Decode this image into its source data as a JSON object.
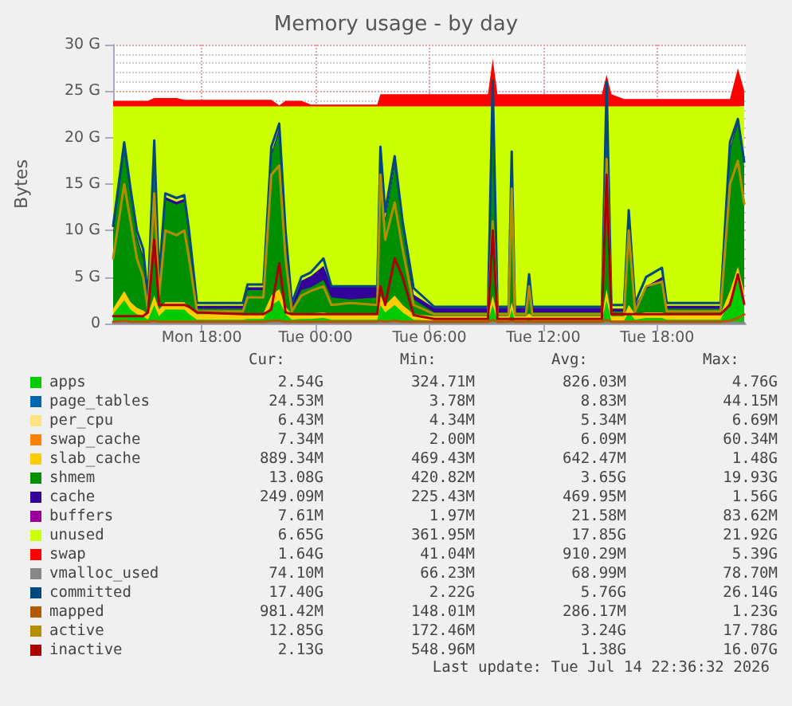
{
  "chart_data": {
    "type": "area",
    "title": "Memory usage - by day",
    "ylabel": "Bytes",
    "stacked": true,
    "grid": true,
    "legend": "bottom",
    "marker": "none",
    "xlim": [
      "2026-07-13T13:20",
      "2026-07-14T22:40"
    ],
    "xticks": [
      {
        "value": "2026-07-13T18:00",
        "label": "Mon 18:00"
      },
      {
        "value": "2026-07-14T00:00",
        "label": "Tue 00:00"
      },
      {
        "value": "2026-07-14T06:00",
        "label": "Tue 06:00"
      },
      {
        "value": "2026-07-14T12:00",
        "label": "Tue 12:00"
      },
      {
        "value": "2026-07-14T18:00",
        "label": "Tue 18:00"
      }
    ],
    "ylim": [
      0,
      30
    ],
    "yticks": [
      0,
      {
        "value": 5,
        "label": "5 G"
      },
      {
        "value": 10,
        "label": "10 G"
      },
      {
        "value": 15,
        "label": "15 G"
      },
      {
        "value": 20,
        "label": "20 G"
      },
      {
        "value": 25,
        "label": "25 G"
      },
      {
        "value": 30,
        "label": "30 G"
      }
    ],
    "x": [
      "2026-07-13T13:20",
      "2026-07-13T13:55",
      "2026-07-13T14:15",
      "2026-07-13T14:35",
      "2026-07-13T14:55",
      "2026-07-13T15:10",
      "2026-07-13T15:30",
      "2026-07-13T15:45",
      "2026-07-13T16:05",
      "2026-07-13T16:40",
      "2026-07-13T17:05",
      "2026-07-13T17:20",
      "2026-07-13T17:45",
      "2026-07-13T20:10",
      "2026-07-13T20:25",
      "2026-07-13T21:15",
      "2026-07-13T21:40",
      "2026-07-13T22:05",
      "2026-07-13T22:25",
      "2026-07-13T22:45",
      "2026-07-13T23:15",
      "2026-07-13T23:45",
      "2026-07-14T00:25",
      "2026-07-14T00:50",
      "2026-07-14T01:50",
      "2026-07-14T03:15",
      "2026-07-14T03:25",
      "2026-07-14T03:40",
      "2026-07-14T04:10",
      "2026-07-14T04:35",
      "2026-07-14T05:10",
      "2026-07-14T06:15",
      "2026-07-14T09:05",
      "2026-07-14T09:20",
      "2026-07-14T09:35",
      "2026-07-14T10:10",
      "2026-07-14T10:20",
      "2026-07-14T10:30",
      "2026-07-14T11:05",
      "2026-07-14T11:15",
      "2026-07-14T11:25",
      "2026-07-14T15:05",
      "2026-07-14T15:20",
      "2026-07-14T15:35",
      "2026-07-14T16:15",
      "2026-07-14T16:30",
      "2026-07-14T16:50",
      "2026-07-14T17:25",
      "2026-07-14T18:15",
      "2026-07-14T18:30",
      "2026-07-14T21:20",
      "2026-07-14T21:50",
      "2026-07-14T22:15",
      "2026-07-14T22:35"
    ],
    "series": [
      {
        "name": "apps",
        "color": "#00cc00",
        "values": [
          1.0,
          2.5,
          1.5,
          1.0,
          0.8,
          0.4,
          2.0,
          0.8,
          1.5,
          1.5,
          1.5,
          1.0,
          0.4,
          0.4,
          0.5,
          0.5,
          2.0,
          2.5,
          1.0,
          0.4,
          0.5,
          0.5,
          0.6,
          0.4,
          0.4,
          0.4,
          2.0,
          1.2,
          2.0,
          1.2,
          0.4,
          0.3,
          0.3,
          2.0,
          0.3,
          0.3,
          1.5,
          0.3,
          0.3,
          0.5,
          0.3,
          0.3,
          2.5,
          0.3,
          0.3,
          1.2,
          0.4,
          0.6,
          0.6,
          0.4,
          0.4,
          2.5,
          4.7,
          2.54
        ]
      },
      {
        "name": "page_tables",
        "color": "#0066b3",
        "values": [
          null,
          null,
          null,
          null,
          null,
          null,
          null,
          null,
          null,
          null,
          null,
          null,
          null,
          null,
          null,
          null,
          null,
          null,
          null,
          null,
          null,
          null,
          null,
          null,
          null,
          null,
          null,
          null,
          null,
          null,
          null,
          null,
          null,
          null,
          null,
          null,
          null,
          null,
          null,
          null,
          null,
          null,
          null,
          null,
          null,
          null,
          null,
          null,
          null,
          null,
          null,
          null,
          null,
          null
        ]
      },
      {
        "name": "per_cpu",
        "color": "#ffe380",
        "values": [
          null,
          null,
          null,
          null,
          null,
          null,
          null,
          null,
          null,
          null,
          null,
          null,
          null,
          null,
          null,
          null,
          null,
          null,
          null,
          null,
          null,
          null,
          null,
          null,
          null,
          null,
          null,
          null,
          null,
          null,
          null,
          null,
          null,
          null,
          null,
          null,
          null,
          null,
          null,
          null,
          null,
          null,
          null,
          null,
          null,
          null,
          null,
          null,
          null,
          null,
          null,
          null,
          null,
          null
        ]
      },
      {
        "name": "swap_cache",
        "color": "#ff8000",
        "values": [
          null,
          null,
          null,
          null,
          null,
          null,
          null,
          null,
          null,
          null,
          null,
          null,
          null,
          null,
          null,
          null,
          null,
          null,
          null,
          null,
          null,
          null,
          null,
          null,
          null,
          null,
          null,
          null,
          null,
          null,
          null,
          null,
          null,
          null,
          null,
          null,
          null,
          null,
          null,
          null,
          null,
          null,
          null,
          null,
          null,
          null,
          null,
          null,
          null,
          null,
          null,
          null,
          null,
          null
        ]
      },
      {
        "name": "slab_cache",
        "color": "#ffcc00",
        "values": [
          0.6,
          1.0,
          0.8,
          0.7,
          0.6,
          0.6,
          1.0,
          0.7,
          0.8,
          0.8,
          0.8,
          0.7,
          0.6,
          0.6,
          0.6,
          0.6,
          1.0,
          1.2,
          0.8,
          0.6,
          0.6,
          0.6,
          0.6,
          0.6,
          0.6,
          0.6,
          1.0,
          0.8,
          1.0,
          0.8,
          0.6,
          0.5,
          0.5,
          1.0,
          0.5,
          0.5,
          0.8,
          0.5,
          0.5,
          0.6,
          0.5,
          0.5,
          1.2,
          0.5,
          0.5,
          0.8,
          0.6,
          0.6,
          0.6,
          0.6,
          0.6,
          1.0,
          1.4,
          0.89
        ]
      },
      {
        "name": "shmem",
        "color": "#008f00",
        "values": [
          8.0,
          15.0,
          11.5,
          7.5,
          5.5,
          0.8,
          15.5,
          2.8,
          11.0,
          10.5,
          10.8,
          7.5,
          0.6,
          0.6,
          2.5,
          2.5,
          15.0,
          17.0,
          7.5,
          0.6,
          2.5,
          2.8,
          3.5,
          1.8,
          1.6,
          1.8,
          15.0,
          9.0,
          14.0,
          8.5,
          1.6,
          0.4,
          0.4,
          19.7,
          0.4,
          0.4,
          14.0,
          0.4,
          0.4,
          3.3,
          0.4,
          0.4,
          19.0,
          0.5,
          0.5,
          9.0,
          0.6,
          2.5,
          3.5,
          0.6,
          0.6,
          15.0,
          15.5,
          13.08
        ]
      },
      {
        "name": "cache",
        "color": "#330099",
        "values": [
          0.3,
          0.3,
          0.3,
          0.3,
          0.3,
          0.3,
          0.3,
          0.3,
          0.3,
          0.3,
          0.3,
          0.3,
          0.3,
          0.3,
          0.3,
          0.3,
          0.3,
          0.3,
          0.3,
          0.3,
          1.0,
          1.2,
          1.5,
          1.2,
          1.4,
          1.2,
          0.3,
          0.3,
          0.3,
          0.3,
          0.5,
          0.5,
          0.5,
          0.3,
          0.5,
          0.5,
          0.3,
          0.5,
          0.5,
          0.3,
          0.5,
          0.5,
          0.3,
          0.3,
          0.3,
          0.3,
          0.3,
          0.3,
          0.3,
          0.3,
          0.3,
          0.3,
          0.3,
          0.25
        ]
      },
      {
        "name": "buffers",
        "color": "#990099",
        "values": [
          null,
          null,
          null,
          null,
          null,
          null,
          null,
          null,
          null,
          null,
          null,
          null,
          null,
          null,
          null,
          null,
          null,
          null,
          null,
          null,
          null,
          null,
          null,
          null,
          null,
          null,
          null,
          null,
          null,
          null,
          null,
          null,
          null,
          null,
          null,
          null,
          null,
          null,
          null,
          null,
          null,
          null,
          null,
          null,
          null,
          null,
          null,
          null,
          null,
          null,
          null,
          null,
          null,
          null
        ]
      },
      {
        "name": "unused",
        "color": "#ccff00",
        "values": [
          13.46,
          4.56,
          9.26,
          13.86,
          16.16,
          21.26,
          4.56,
          18.76,
          9.76,
          10.26,
          9.96,
          13.86,
          21.46,
          21.46,
          19.46,
          19.46,
          5.06,
          2.36,
          13.76,
          21.46,
          18.76,
          18.26,
          17.16,
          19.36,
          19.36,
          19.36,
          5.06,
          12.06,
          6.06,
          12.56,
          20.26,
          21.66,
          21.66,
          0.36,
          21.66,
          21.66,
          6.76,
          21.66,
          21.66,
          18.66,
          21.66,
          21.66,
          0.36,
          21.76,
          21.76,
          12.06,
          21.46,
          19.36,
          18.36,
          21.46,
          21.46,
          4.56,
          1.46,
          6.65
        ]
      },
      {
        "name": "swap",
        "color": "#ff0000",
        "values": [
          0.6,
          0.6,
          0.6,
          0.6,
          0.6,
          0.6,
          0.9,
          0.9,
          0.9,
          0.9,
          0.7,
          0.7,
          0.7,
          0.7,
          0.7,
          0.7,
          0.7,
          0.1,
          0.6,
          0.6,
          0.6,
          0.2,
          0.2,
          0.2,
          0.2,
          0.2,
          1.3,
          1.3,
          1.3,
          1.3,
          1.3,
          1.3,
          1.3,
          5.1,
          1.3,
          1.3,
          1.3,
          1.3,
          1.3,
          1.3,
          1.3,
          1.3,
          3.4,
          1.3,
          0.8,
          0.8,
          0.8,
          0.8,
          0.8,
          0.8,
          0.8,
          0.8,
          4.1,
          1.64
        ]
      },
      {
        "name": "vmalloc_used",
        "color": "#888888",
        "type": "line",
        "values": [
          0.07,
          0.07,
          0.07,
          0.07,
          0.07,
          0.07,
          0.07,
          0.07,
          0.07,
          0.07,
          0.07,
          0.07,
          0.07,
          0.07,
          0.07,
          0.07,
          0.07,
          0.07,
          0.07,
          0.07,
          0.07,
          0.07,
          0.07,
          0.07,
          0.07,
          0.07,
          0.07,
          0.07,
          0.07,
          0.07,
          0.07,
          0.07,
          0.07,
          0.07,
          0.07,
          0.07,
          0.07,
          0.07,
          0.07,
          0.07,
          0.07,
          0.07,
          0.07,
          0.07,
          0.07,
          0.07,
          0.07,
          0.07,
          0.07,
          0.07,
          0.07,
          0.07,
          0.07,
          0.07
        ]
      },
      {
        "name": "committed",
        "color": "#00487d",
        "type": "line",
        "values": [
          10.5,
          19.5,
          14.5,
          10,
          8,
          2.7,
          19.7,
          5,
          14,
          13.5,
          13.8,
          10,
          2.2,
          2.2,
          4.2,
          4.2,
          19,
          21.5,
          10,
          2.2,
          5,
          5.5,
          7,
          4,
          4,
          4,
          19,
          12,
          18,
          11,
          3.8,
          1.8,
          1.8,
          26.1,
          1.8,
          1.8,
          18.5,
          1.8,
          1.8,
          5.3,
          1.8,
          1.8,
          26,
          2,
          2,
          12.2,
          2.2,
          5,
          6,
          2.2,
          2.2,
          19.5,
          22,
          17.4
        ]
      },
      {
        "name": "mapped",
        "color": "#b35a00",
        "type": "line",
        "values": [
          0.2,
          0.3,
          0.2,
          0.2,
          0.2,
          0.2,
          0.3,
          0.2,
          0.2,
          0.2,
          0.2,
          0.2,
          0.2,
          0.2,
          0.2,
          0.2,
          0.3,
          0.3,
          0.2,
          0.2,
          0.2,
          0.2,
          0.2,
          0.2,
          0.2,
          0.2,
          0.3,
          0.2,
          0.3,
          0.2,
          0.2,
          0.2,
          0.2,
          0.4,
          0.2,
          0.2,
          0.3,
          0.2,
          0.2,
          0.2,
          0.2,
          0.2,
          0.4,
          0.2,
          0.2,
          0.2,
          0.2,
          0.2,
          0.2,
          0.2,
          0.2,
          0.3,
          0.6,
          0.98
        ]
      },
      {
        "name": "active",
        "color": "#b38f00",
        "type": "line",
        "values": [
          7,
          15,
          11,
          7,
          5,
          1.5,
          14,
          3,
          10,
          9.5,
          10,
          7,
          1.3,
          1.3,
          2.8,
          2.8,
          16,
          17,
          7,
          1.3,
          3,
          3.5,
          4,
          2,
          2.2,
          2,
          16,
          9,
          13,
          8,
          2,
          1,
          1,
          11,
          1,
          1,
          14.5,
          1,
          1,
          4,
          1,
          1,
          17.7,
          1,
          1,
          10,
          1.3,
          4,
          4.5,
          1.3,
          1.3,
          15,
          17.5,
          12.85
        ]
      },
      {
        "name": "inactive",
        "color": "#aa0000",
        "type": "line",
        "values": [
          0.8,
          0.8,
          0.8,
          0.8,
          0.8,
          1.2,
          9,
          2,
          2,
          2,
          2,
          1.8,
          1.2,
          1,
          1,
          1,
          1.5,
          6.5,
          1.2,
          1,
          1,
          1,
          1,
          1,
          1,
          1,
          4,
          2,
          7,
          5,
          0.9,
          0.5,
          0.5,
          10,
          0.5,
          0.5,
          0.5,
          0.5,
          0.5,
          0.5,
          0.5,
          0.5,
          16,
          1,
          1,
          1,
          1,
          1,
          1,
          1,
          1,
          2,
          5.3,
          2.13
        ]
      }
    ],
    "annotations": [
      "Cur:",
      "Min:",
      "Avg:",
      "Max:",
      "2.54G",
      "324.71M",
      "826.03M",
      "4.76G",
      "24.53M",
      "3.78M",
      "8.83M",
      "44.15M",
      "6.43M",
      "4.34M",
      "5.34M",
      "6.69M",
      "7.34M",
      "2.00M",
      "6.09M",
      "60.34M",
      "889.34M",
      "469.43M",
      "642.47M",
      "1.48G",
      "13.08G",
      "420.82M",
      "3.65G",
      "19.93G",
      "249.09M",
      "225.43M",
      "469.95M",
      "1.56G",
      "7.61M",
      "1.97M",
      "21.58M",
      "83.62M",
      "6.65G",
      "361.95M",
      "17.85G",
      "21.92G",
      "1.64G",
      "41.04M",
      "910.29M",
      "5.39G",
      "74.10M",
      "66.23M",
      "68.99M",
      "78.70M",
      "17.40G",
      "2.22G",
      "5.76G",
      "26.14G",
      "981.42M",
      "148.01M",
      "286.17M",
      "1.23G",
      "12.85G",
      "172.46M",
      "3.24G",
      "17.78G",
      "2.13G",
      "548.96M",
      "1.38G",
      "16.07G",
      "Last update: Tue Jul 14 22:36:32 2026"
    ]
  }
}
